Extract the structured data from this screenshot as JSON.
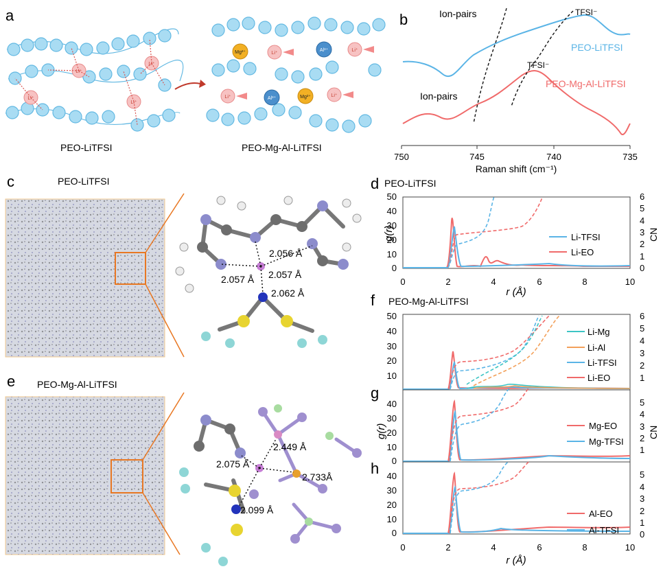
{
  "panels": {
    "a": {
      "letter": "a",
      "left_caption": "PEO-LiTFSI",
      "right_caption": "PEO-Mg-Al-LiTFSI",
      "ion_li": "Li⁺",
      "ion_mg": "Mg²⁺",
      "ion_al": "Al³⁺"
    },
    "b": {
      "letter": "b",
      "xlabel": "Raman shift (cm⁻¹)",
      "ticks": [
        "750",
        "745",
        "740",
        "735"
      ],
      "ann_ionpairs_top": "Ion-pairs",
      "ann_tfsi_top": "TFSI⁻",
      "ann_ionpairs_bottom": "Ion-pairs",
      "ann_tfsi_bottom": "TFSI⁻",
      "series_top": "PEO-LiTFSI",
      "series_bottom": "PEO-Mg-Al-LiTFSI",
      "color_top": "#5ab4e6",
      "color_bottom": "#f06a6a"
    },
    "c": {
      "letter": "c",
      "title": "PEO-LiTFSI",
      "d1": "2.056 Å",
      "d2": "2.057 Å",
      "d3": "2.057 Å",
      "d4": "2.062 Å"
    },
    "e": {
      "letter": "e",
      "title": "PEO-Mg-Al-LiTFSI",
      "d1": "2.449 Å",
      "d2": "2.075 Å",
      "d3": "2.733Å",
      "d4": "2.099 Å"
    },
    "d": {
      "letter": "d",
      "title": "PEO-LiTFSI",
      "ylabel_left": "g(r)",
      "ylabel_right": "CN",
      "xlabel": "r (Å)",
      "y_ticks": [
        "50",
        "40",
        "30",
        "20",
        "10",
        "0"
      ],
      "cn_ticks": [
        "6",
        "5",
        "4",
        "3",
        "2",
        "1",
        "0"
      ],
      "x_ticks": [
        "0",
        "2",
        "4",
        "6",
        "8",
        "10"
      ],
      "legend": [
        "Li-TFSI",
        "Li-EO"
      ]
    },
    "f": {
      "letter": "f",
      "title": "PEO-Mg-Al-LiTFSI",
      "y_ticks": [
        "50",
        "40",
        "30",
        "20",
        "10"
      ],
      "cn_ticks": [
        "6",
        "5",
        "4",
        "3",
        "2",
        "1"
      ],
      "legend": [
        "Li-Mg",
        "Li-Al",
        "Li-TFSI",
        "Li-EO"
      ]
    },
    "g": {
      "letter": "g",
      "y_ticks": [
        "40",
        "30",
        "20",
        "10",
        "0"
      ],
      "cn_ticks": [
        "5",
        "4",
        "3",
        "2",
        "1"
      ],
      "ylabel_left": "g(r)",
      "ylabel_right": "CN",
      "legend": [
        "Mg-EO",
        "Mg-TFSI"
      ]
    },
    "h": {
      "letter": "h",
      "y_ticks": [
        "40",
        "30",
        "20",
        "10",
        "0"
      ],
      "cn_ticks": [
        "5",
        "4",
        "3",
        "2",
        "1",
        "0"
      ],
      "x_ticks": [
        "0",
        "2",
        "4",
        "6",
        "8",
        "10"
      ],
      "xlabel": "r (Å)",
      "legend": [
        "Al-EO",
        "Al-TFSI"
      ]
    }
  },
  "colors": {
    "peo_chain": "#a9dcf3",
    "peo_stroke": "#62b8e2",
    "li": "#f7c2c2",
    "mg": "#f2b024",
    "al": "#4b8fcc",
    "orange_box": "#e87722",
    "teal": "#3cc4c4",
    "orange": "#f3a05a",
    "blue": "#5ab4e6",
    "red": "#f06a6a"
  }
}
